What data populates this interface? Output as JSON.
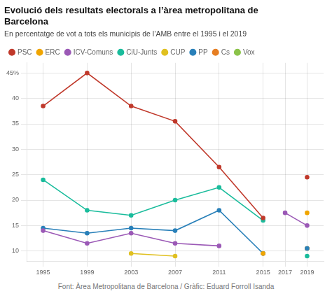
{
  "chart_data": {
    "type": "line",
    "title": "Evolució dels resultats electorals a l’àrea metropolitana de\nBarcelona",
    "subtitle": "En percentatge de vot a tots els municipis de l’AMB entre el 1995 i el 2019",
    "annotations": [
      "Font: Àrea Metropolitana de Barcelona / Gràfic: Eduard Forroll Isanda"
    ],
    "x": [
      1995,
      1999,
      2003,
      2007,
      2011,
      2015,
      2017,
      2019
    ],
    "xlim": [
      1993.5,
      2020.5
    ],
    "xticks": [
      1995,
      1999,
      2003,
      2007,
      2011,
      2015,
      2017,
      2019
    ],
    "ylim": [
      8,
      47
    ],
    "yticks": [
      10,
      15,
      20,
      25,
      30,
      35,
      40,
      {
        "value": 45,
        "label": "45%"
      }
    ],
    "grid": true,
    "legend": "top",
    "marker": "circle",
    "line_style": "solid",
    "series": [
      {
        "name": "PSC",
        "color": "#c0392b",
        "values": [
          38.5,
          45.0,
          38.5,
          35.5,
          26.5,
          16.5,
          null,
          24.5
        ]
      },
      {
        "name": "ERC",
        "color": "#f0a500",
        "values": [
          null,
          null,
          null,
          null,
          null,
          9.5,
          null,
          17.5
        ]
      },
      {
        "name": "ICV-Comuns",
        "color": "#9b59b6",
        "values": [
          14.0,
          11.5,
          13.5,
          11.5,
          11.0,
          null,
          17.5,
          15.0
        ]
      },
      {
        "name": "CiU-Junts",
        "color": "#1abc9c",
        "values": [
          24.0,
          18.0,
          17.0,
          20.0,
          22.5,
          16.0,
          null,
          9.0
        ]
      },
      {
        "name": "CUP",
        "color": "#e0c020",
        "values": [
          null,
          null,
          9.5,
          9.0,
          null,
          null,
          null,
          null
        ]
      },
      {
        "name": "PP",
        "color": "#2980b9",
        "values": [
          14.5,
          13.5,
          14.5,
          14.0,
          18.0,
          9.5,
          null,
          10.5
        ]
      },
      {
        "name": "Cs",
        "color": "#e67e22",
        "values": [
          null,
          null,
          null,
          null,
          null,
          9.5,
          null,
          10.5
        ]
      },
      {
        "name": "Vox",
        "color": "#8bc34a",
        "values": [
          null,
          null,
          null,
          null,
          null,
          null,
          null,
          10.5
        ]
      }
    ]
  }
}
